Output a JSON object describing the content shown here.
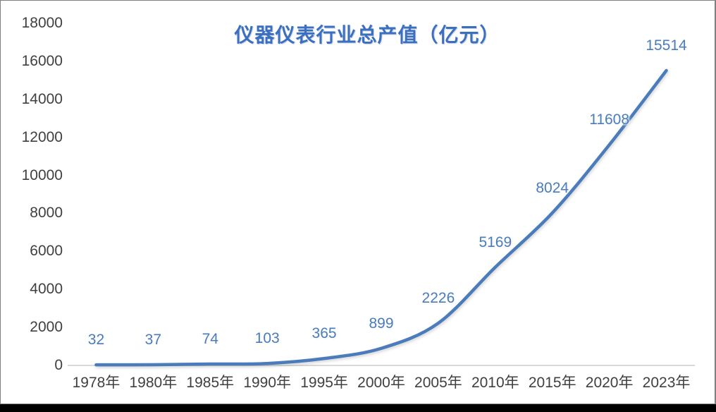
{
  "chart_data": {
    "type": "line",
    "title": "仪器仪表行业总产值（亿元）",
    "categories": [
      "1978年",
      "1980年",
      "1985年",
      "1990年",
      "1995年",
      "2000年",
      "2005年",
      "2010年",
      "2015年",
      "2020年",
      "2023年"
    ],
    "values": [
      32,
      37,
      74,
      103,
      365,
      899,
      2226,
      5169,
      8024,
      11608,
      15514
    ],
    "data_labels": [
      "32",
      "37",
      "74",
      "103",
      "365",
      "899",
      "2226",
      "5169",
      "8024",
      "11608",
      "15514"
    ],
    "ylim": [
      0,
      18000
    ],
    "ytick_step": 2000,
    "ytick_labels": [
      "0",
      "2000",
      "4000",
      "6000",
      "8000",
      "10000",
      "12000",
      "14000",
      "16000",
      "18000"
    ],
    "grid": false,
    "legend": "none",
    "smooth_line": true,
    "markers": false,
    "colors": {
      "line": "#4A7CBC",
      "data_label": "#4A7CBC",
      "title": "#3B6FC0",
      "axis_text": "#404040",
      "axis_line": "#D9D9D9",
      "frame_border": "#808080",
      "bottom_bar": "#000000"
    }
  }
}
